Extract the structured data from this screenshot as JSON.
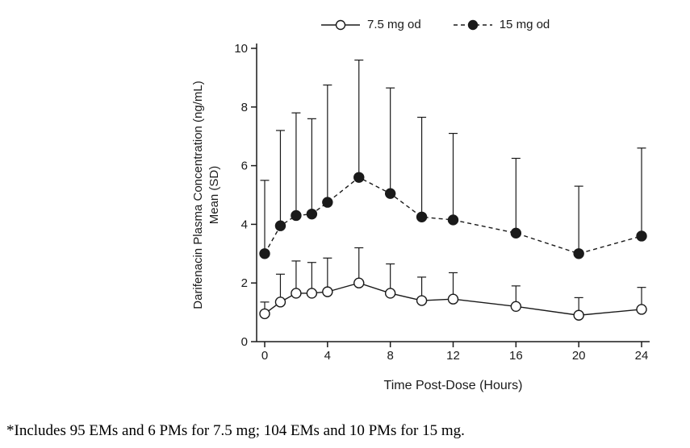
{
  "chart_data": {
    "type": "line",
    "title": "",
    "xlabel": "Time Post-Dose (Hours)",
    "ylabel_line1": "Darifenacin Plasma Concentration (ng/mL)",
    "ylabel_line2": "Mean (SD)",
    "xlim": [
      0,
      24
    ],
    "ylim": [
      0,
      10
    ],
    "xticks": [
      0,
      4,
      8,
      12,
      16,
      20,
      24
    ],
    "yticks": [
      0,
      2,
      4,
      6,
      8,
      10
    ],
    "x": [
      0,
      1,
      2,
      3,
      4,
      6,
      8,
      10,
      12,
      16,
      20,
      24
    ],
    "error_bars": "upper-only-sd",
    "grid": false,
    "legend_position": "top-center",
    "series": [
      {
        "name": "7.5 mg od",
        "marker": "open-circle",
        "line_style": "solid",
        "mean": [
          0.95,
          1.35,
          1.65,
          1.65,
          1.7,
          2.0,
          1.65,
          1.4,
          1.45,
          1.2,
          0.9,
          1.1
        ],
        "sd": [
          0.4,
          0.95,
          1.1,
          1.05,
          1.15,
          1.2,
          1.0,
          0.8,
          0.9,
          0.7,
          0.6,
          0.75
        ]
      },
      {
        "name": "15 mg od",
        "marker": "filled-circle",
        "line_style": "dashed",
        "mean": [
          3.0,
          3.95,
          4.3,
          4.35,
          4.75,
          5.6,
          5.05,
          4.25,
          4.15,
          3.7,
          3.0,
          3.6
        ],
        "sd": [
          2.5,
          3.25,
          3.5,
          3.25,
          4.0,
          4.0,
          3.6,
          3.4,
          2.95,
          2.55,
          2.3,
          3.0
        ]
      }
    ]
  },
  "footnote": "*Includes 95 EMs and 6 PMs for 7.5 mg; 104 EMs and 10 PMs for 15 mg.",
  "colors": {
    "ink": "#1a1a1a",
    "background": "#ffffff"
  }
}
